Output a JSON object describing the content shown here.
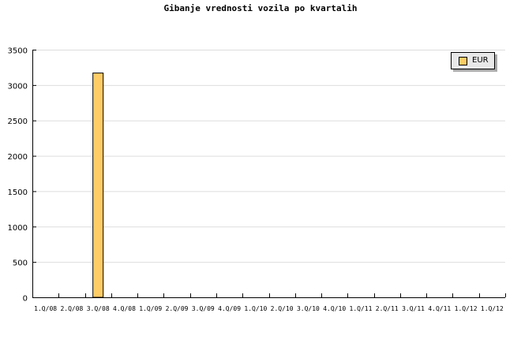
{
  "chart_data": {
    "type": "bar",
    "title": "Gibanje vrednosti vozila po kvartalih",
    "categories": [
      "1.Q/08",
      "2.Q/08",
      "3.Q/08",
      "4.Q/08",
      "1.Q/09",
      "2.Q/09",
      "3.Q/09",
      "4.Q/09",
      "1.Q/10",
      "2.Q/10",
      "3.Q/10",
      "4.Q/10",
      "1.Q/11",
      "2.Q/11",
      "3.Q/11",
      "4.Q/11",
      "1.Q/12",
      "1.Q/12"
    ],
    "series": [
      {
        "name": "EUR",
        "values": [
          0,
          0,
          3170,
          0,
          0,
          0,
          0,
          0,
          0,
          0,
          0,
          0,
          0,
          0,
          0,
          0,
          0,
          0
        ],
        "color": "#ffcc66"
      }
    ],
    "ylim": [
      0,
      3500
    ],
    "yticks": [
      0,
      500,
      1000,
      1500,
      2000,
      2500,
      3000,
      3500
    ],
    "grid": true,
    "legend": "top-right",
    "xlabel": "",
    "ylabel": ""
  }
}
